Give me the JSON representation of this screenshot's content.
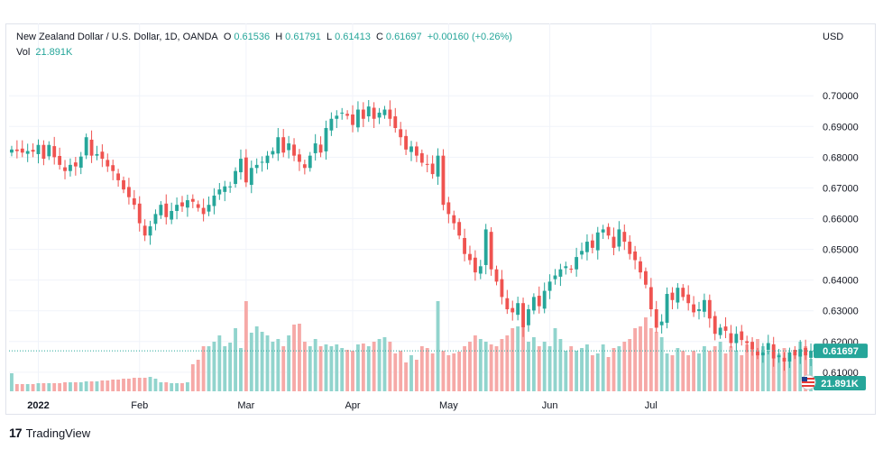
{
  "legend": {
    "title": "New Zealand Dollar / U.S. Dollar, 1D, OANDA",
    "o_label": "O",
    "o_value": "0.61536",
    "h_label": "H",
    "h_value": "0.61791",
    "l_label": "L",
    "l_value": "0.61413",
    "c_label": "C",
    "c_value": "0.61697",
    "change": "+0.00160 (+0.26%)",
    "vol_label": "Vol",
    "vol_value": "21.891K"
  },
  "currency_label": "USD",
  "price_badge": "0.61697",
  "volume_badge": "21.891K",
  "brand": {
    "logo": "17",
    "name": "TradingView"
  },
  "colors": {
    "up": "#26a69a",
    "down": "#ef5350",
    "vol_up": "#91d4cd",
    "vol_down": "#f6a9a7",
    "last_price_line": "#26a69a"
  },
  "chart_data": {
    "type": "candlestick",
    "symbol": "NZDUSD",
    "interval": "1D",
    "y_ticks": [
      0.61,
      0.62,
      0.63,
      0.64,
      0.65,
      0.66,
      0.67,
      0.68,
      0.69,
      0.7
    ],
    "y_tick_labels": [
      "0.61000",
      "0.62000",
      "0.63000",
      "0.64000",
      "0.65000",
      "0.66000",
      "0.67000",
      "0.68000",
      "0.69000",
      "0.70000"
    ],
    "ylim": [
      0.6038,
      0.7118
    ],
    "x_ticks": [
      {
        "label": "2022",
        "index": 5
      },
      {
        "label": "Feb",
        "index": 24
      },
      {
        "label": "Mar",
        "index": 44
      },
      {
        "label": "Apr",
        "index": 64
      },
      {
        "label": "May",
        "index": 82
      },
      {
        "label": "Jun",
        "index": 101
      },
      {
        "label": "Jul",
        "index": 120
      }
    ],
    "last_close": 0.61697,
    "close": [
      0.6825,
      0.682,
      0.6815,
      0.682,
      0.6818,
      0.684,
      0.6795,
      0.684,
      0.68,
      0.6775,
      0.6755,
      0.6775,
      0.677,
      0.6802,
      0.6865,
      0.6805,
      0.681,
      0.6795,
      0.677,
      0.6755,
      0.6725,
      0.6695,
      0.667,
      0.6645,
      0.6585,
      0.6545,
      0.6575,
      0.6615,
      0.6645,
      0.6605,
      0.6625,
      0.6645,
      0.664,
      0.666,
      0.6655,
      0.6635,
      0.6615,
      0.6645,
      0.6675,
      0.6695,
      0.6705,
      0.6705,
      0.6755,
      0.6795,
      0.6718,
      0.6765,
      0.6775,
      0.6785,
      0.6805,
      0.682,
      0.6865,
      0.6815,
      0.6845,
      0.6805,
      0.6785,
      0.6765,
      0.6805,
      0.6845,
      0.6815,
      0.6895,
      0.6925,
      0.6935,
      0.6945,
      0.6935,
      0.6905,
      0.6955,
      0.6925,
      0.6965,
      0.6925,
      0.6945,
      0.6955,
      0.6925,
      0.6895,
      0.6865,
      0.6825,
      0.6835,
      0.6805,
      0.6782,
      0.6775,
      0.6745,
      0.6805,
      0.6645,
      0.6615,
      0.6585,
      0.6545,
      0.6485,
      0.6465,
      0.6425,
      0.6445,
      0.6565,
      0.6435,
      0.6395,
      0.6345,
      0.6305,
      0.6295,
      0.6325,
      0.6245,
      0.6305,
      0.6345,
      0.6315,
      0.6365,
      0.6395,
      0.6415,
      0.6435,
      0.6445,
      0.6435,
      0.6475,
      0.6495,
      0.6525,
      0.6505,
      0.6555,
      0.6565,
      0.6545,
      0.6505,
      0.6565,
      0.6525,
      0.6485,
      0.6465,
      0.6425,
      0.6385,
      0.6305,
      0.6245,
      0.6265,
      0.6355,
      0.6335,
      0.6375,
      0.6345,
      0.6325,
      0.6295,
      0.6305,
      0.6335,
      0.6275,
      0.6225,
      0.6245,
      0.6235,
      0.6195,
      0.6225,
      0.6205,
      0.6195,
      0.6175,
      0.6155,
      0.6165,
      0.6195,
      0.6145,
      0.6155,
      0.6135,
      0.6165,
      0.6155,
      0.6175,
      0.6155,
      0.61697
    ],
    "volume_rel": [
      0.2,
      0.08,
      0.08,
      0.08,
      0.08,
      0.09,
      0.09,
      0.09,
      0.09,
      0.09,
      0.1,
      0.1,
      0.1,
      0.1,
      0.11,
      0.11,
      0.11,
      0.12,
      0.12,
      0.13,
      0.13,
      0.14,
      0.14,
      0.15,
      0.15,
      0.15,
      0.16,
      0.14,
      0.1,
      0.1,
      0.09,
      0.09,
      0.09,
      0.1,
      0.3,
      0.35,
      0.5,
      0.5,
      0.55,
      0.62,
      0.5,
      0.54,
      0.7,
      0.48,
      1.0,
      0.65,
      0.72,
      0.66,
      0.62,
      0.55,
      0.58,
      0.5,
      0.62,
      0.74,
      0.75,
      0.55,
      0.5,
      0.58,
      0.5,
      0.52,
      0.5,
      0.52,
      0.48,
      0.46,
      0.45,
      0.52,
      0.53,
      0.5,
      0.55,
      0.58,
      0.6,
      0.55,
      0.42,
      0.45,
      0.32,
      0.4,
      0.35,
      0.5,
      0.48,
      0.42,
      1.0,
      0.45,
      0.4,
      0.42,
      0.44,
      0.5,
      0.55,
      0.62,
      0.58,
      0.55,
      0.52,
      0.5,
      0.58,
      0.62,
      0.7,
      0.72,
      0.7,
      0.55,
      0.6,
      0.5,
      0.55,
      0.5,
      0.7,
      0.58,
      0.45,
      0.5,
      0.45,
      0.48,
      0.52,
      0.4,
      0.42,
      0.52,
      0.38,
      0.48,
      0.5,
      0.55,
      0.58,
      0.7,
      0.72,
      0.82,
      0.7,
      0.66,
      0.6,
      0.42,
      0.4,
      0.48,
      0.45,
      0.4,
      0.45,
      0.42,
      0.5,
      0.45,
      0.5,
      0.55,
      0.42,
      0.5,
      0.45,
      0.4,
      0.52,
      0.48,
      0.58,
      0.5,
      0.45,
      0.5,
      0.42,
      0.48,
      0.4,
      0.45,
      0.55,
      0.5,
      0.36
    ]
  }
}
